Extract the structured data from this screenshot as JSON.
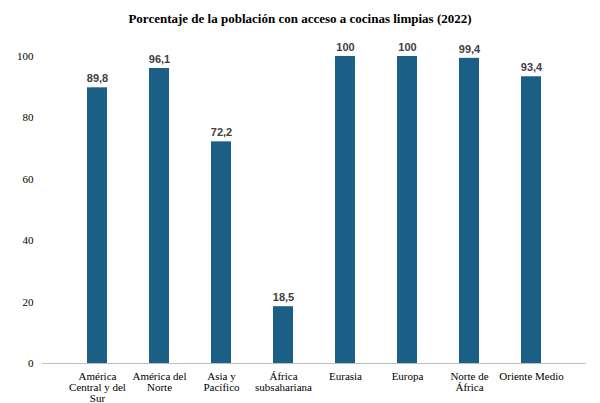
{
  "chart_data": {
    "type": "bar",
    "title": "Porcentaje de la población con acceso a cocinas limpias (2022)",
    "categories": [
      "América Central y del Sur",
      "América del Norte",
      "Asia y Pacífico",
      "África subsahariana",
      "Eurasia",
      "Europa",
      "Norte de África",
      "Oriente Medio"
    ],
    "values": [
      89.8,
      96.1,
      72.2,
      18.5,
      100,
      100,
      99.4,
      93.4
    ],
    "value_labels": [
      "89,8",
      "96,1",
      "72,2",
      "18,5",
      "100",
      "100",
      "99,4",
      "93,4"
    ],
    "color": "#1b5e86",
    "ylim": [
      0,
      100
    ],
    "yticks": [
      0,
      20,
      40,
      60,
      80,
      100
    ],
    "grid": false,
    "data_labels": true
  }
}
